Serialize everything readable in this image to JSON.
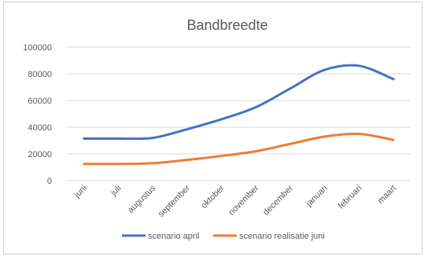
{
  "chart_data": {
    "type": "line",
    "title": "Bandbreedte",
    "xlabel": "",
    "ylabel": "",
    "categories": [
      "juni",
      "juli",
      "augustus",
      "september",
      "oktober",
      "november",
      "december",
      "januari",
      "februari",
      "maart"
    ],
    "ylim": [
      0,
      100000
    ],
    "yticks": [
      "0",
      "20000",
      "40000",
      "60000",
      "80000",
      "100000"
    ],
    "grid": true,
    "legend_position": "bottom",
    "series": [
      {
        "name": "scenario april",
        "color": "#4472c4",
        "values": [
          31500,
          31500,
          32000,
          38500,
          46000,
          55000,
          69000,
          83000,
          86000,
          76000
        ]
      },
      {
        "name": "scenario realisatie juni",
        "color": "#ed7d31",
        "values": [
          12500,
          12500,
          13000,
          15500,
          18500,
          22000,
          27500,
          33000,
          35000,
          30500
        ]
      }
    ]
  }
}
